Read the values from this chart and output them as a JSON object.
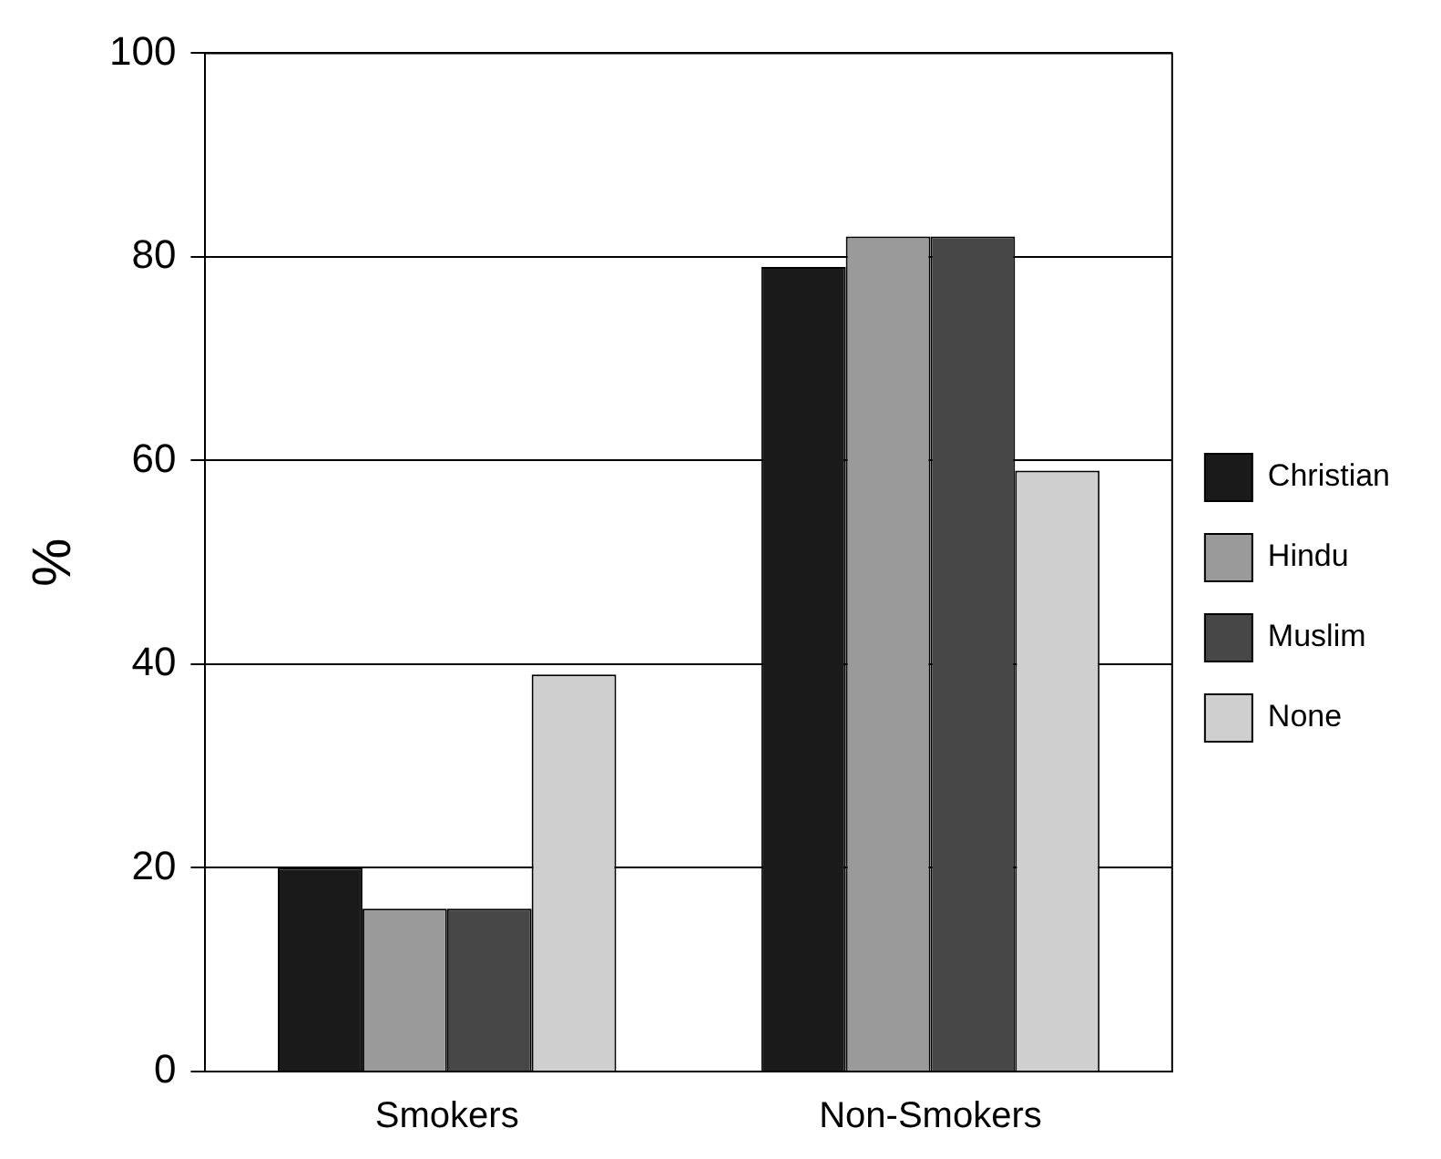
{
  "chart_data": {
    "type": "bar",
    "ylabel": "%",
    "categories": [
      "Smokers",
      "Non-Smokers"
    ],
    "series": [
      {
        "name": "Christian",
        "color": "#1a1a1a",
        "values": [
          20,
          79
        ]
      },
      {
        "name": "Hindu",
        "color": "#9a9a9a",
        "values": [
          16,
          82
        ]
      },
      {
        "name": "Muslim",
        "color": "#474747",
        "values": [
          16,
          82
        ]
      },
      {
        "name": "None",
        "color": "#cfcfcf",
        "values": [
          39,
          59
        ]
      }
    ],
    "ylim": [
      0,
      100
    ],
    "yticks": [
      0,
      20,
      40,
      60,
      80,
      100
    ],
    "grid": "y",
    "legend": "right"
  }
}
